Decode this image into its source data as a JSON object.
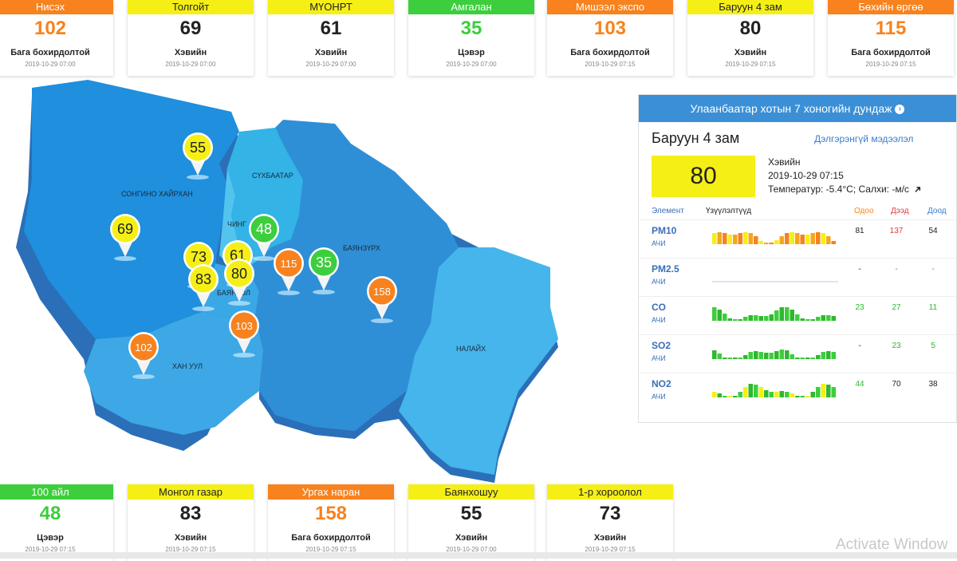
{
  "top_cards": [
    {
      "name": "Нисэх",
      "aqi": "102",
      "status": "Бага бохирдолтой",
      "time": "2019-10-29 07:00",
      "color": "#f7821e"
    },
    {
      "name": "Толгойт",
      "aqi": "69",
      "status": "Хэвийн",
      "time": "2019-10-29 07:00",
      "color": "#f5ef16"
    },
    {
      "name": "МҮОНРТ",
      "aqi": "61",
      "status": "Хэвийн",
      "time": "2019-10-29 07:00",
      "color": "#f5ef16"
    },
    {
      "name": "Амгалан",
      "aqi": "35",
      "status": "Цэвэр",
      "time": "2019-10-29 07:00",
      "color": "#3dce3d"
    },
    {
      "name": "Мишээл экспо",
      "aqi": "103",
      "status": "Бага бохирдолтой",
      "time": "2019-10-29 07:15",
      "color": "#f7821e"
    },
    {
      "name": "Баруун 4 зам",
      "aqi": "80",
      "status": "Хэвийн",
      "time": "2019-10-29 07:15",
      "color": "#f5ef16"
    },
    {
      "name": "Бөхийн өргөө",
      "aqi": "115",
      "status": "Бага бохирдолтой",
      "time": "2019-10-29 07:15",
      "color": "#f7821e"
    }
  ],
  "bottom_cards": [
    {
      "name": "100 айл",
      "aqi": "48",
      "status": "Цэвэр",
      "time": "2019-10-29 07:15",
      "color": "#3dce3d"
    },
    {
      "name": "Монгол газар",
      "aqi": "83",
      "status": "Хэвийн",
      "time": "2019-10-29 07:15",
      "color": "#f5ef16"
    },
    {
      "name": "Ургах наран",
      "aqi": "158",
      "status": "Бага бохирдолтой",
      "time": "2019-10-29 07:15",
      "color": "#f7821e"
    },
    {
      "name": "Баянхошуу",
      "aqi": "55",
      "status": "Хэвийн",
      "time": "2019-10-29 07:00",
      "color": "#f5ef16"
    },
    {
      "name": "1-р хороолол",
      "aqi": "73",
      "status": "Хэвийн",
      "time": "2019-10-29 07:15",
      "color": "#f5ef16"
    }
  ],
  "map": {
    "districts": [
      "СОНГИНО ХАЙРХАН",
      "СҮХБААТАР",
      "ЧИНГ",
      "БАЯНЗҮРХ",
      "БАЯНГОЛ",
      "ХАН УУЛ",
      "НАЛАЙХ"
    ],
    "markers": [
      {
        "value": "55",
        "color": "#f5ef16"
      },
      {
        "value": "69",
        "color": "#f5ef16"
      },
      {
        "value": "48",
        "color": "#3dce3d"
      },
      {
        "value": "73",
        "color": "#f5ef16"
      },
      {
        "value": "61",
        "color": "#f5ef16"
      },
      {
        "value": "83",
        "color": "#f5ef16"
      },
      {
        "value": "80",
        "color": "#f5ef16"
      },
      {
        "value": "115",
        "color": "#f7821e"
      },
      {
        "value": "35",
        "color": "#3dce3d"
      },
      {
        "value": "158",
        "color": "#f7821e"
      },
      {
        "value": "103",
        "color": "#f7821e"
      },
      {
        "value": "102",
        "color": "#f7821e"
      }
    ]
  },
  "panel": {
    "header": "Улаанбаатар хотын 7 хоногийн дундаж",
    "station": "Баруун 4 зам",
    "more_link": "Дэлгэрэнгүй мэдээлэл",
    "aqi": "80",
    "status": "Хэвийн",
    "time": "2019-10-29 07:15",
    "weather": "Температур: -5.4°C; Салхи:  -м/с",
    "col_element": "Элемент",
    "col_index": "Үзүүлэлтүүд",
    "col_now": "Одоо",
    "col_max": "Дээд",
    "col_min": "Доод",
    "pollutants": [
      {
        "name": "PM10",
        "unit": "АЧИ",
        "now": "81",
        "max": "137",
        "min": "54"
      },
      {
        "name": "PM2.5",
        "unit": "АЧИ",
        "now": "-",
        "max": "-",
        "min": "-"
      },
      {
        "name": "CO",
        "unit": "АЧИ",
        "now": "23",
        "max": "27",
        "min": "11"
      },
      {
        "name": "SO2",
        "unit": "АЧИ",
        "now": "-",
        "max": "23",
        "min": "5"
      },
      {
        "name": "NO2",
        "unit": "АЧИ",
        "now": "44",
        "max": "70",
        "min": "38"
      }
    ]
  },
  "watermark": "Activate Window"
}
